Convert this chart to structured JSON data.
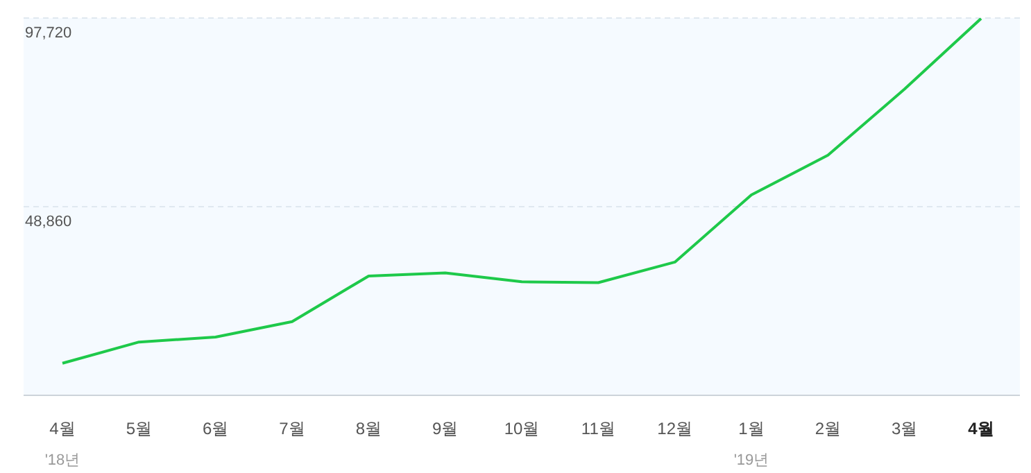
{
  "chart_data": {
    "type": "line",
    "categories": [
      "4월\n'18년",
      "5월",
      "6월",
      "7월",
      "8월",
      "9월",
      "10월",
      "11월",
      "12월",
      "1월\n'19년",
      "2월",
      "3월",
      "4월"
    ],
    "series": [
      {
        "color": "#1ec94a",
        "values": [
          8300,
          13800,
          15100,
          19100,
          30900,
          31700,
          29400,
          29200,
          34500,
          51900,
          62200,
          79300,
          97600
        ]
      }
    ],
    "ylim": [
      0,
      97720
    ],
    "yticks": [
      {
        "value": 48860,
        "label": "48,860"
      },
      {
        "value": 97720,
        "label": "97,720"
      }
    ],
    "grid": "y",
    "marker": "none",
    "line_style": "solid"
  }
}
